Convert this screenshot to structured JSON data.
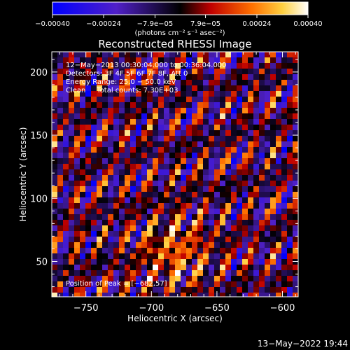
{
  "chart_data": {
    "type": "heatmap",
    "title": "Reconstructed RHESSI Image",
    "xlabel": "Heliocentric X (arcsec)",
    "ylabel": "Heliocentric Y (arcsec)",
    "xlim": [
      -776,
      -588
    ],
    "ylim": [
      22,
      216
    ],
    "x_ticks": [
      -750,
      -700,
      -650,
      -600
    ],
    "x_tick_labels": [
      "−750",
      "−700",
      "−650",
      "−600"
    ],
    "y_ticks": [
      50,
      100,
      150,
      200
    ],
    "y_tick_labels": [
      "50",
      "100",
      "150",
      "200"
    ],
    "annotations": [
      "12−May−2013 00:30:04.000 to 00:36:04.000",
      "Detectors: 3F 4F 5F 6F 7F 8F, Att 0",
      "Energy Range: 25.0 − 50.0 keV",
      "Clean     Total counts: 7.30E+03"
    ],
    "peak": {
      "label": "Position of Peak = [−682,57]",
      "x": -682,
      "y": 57
    },
    "colorbar": {
      "range": [
        -0.0004,
        0.0004
      ],
      "tick_values": [
        -0.0004,
        -0.00024,
        -7.9e-05,
        7.9e-05,
        0.00024,
        0.0004
      ],
      "tick_labels": [
        "−0.00040",
        "−0.00024",
        "−7.9e−05",
        "7.9e−05",
        "0.00024",
        "0.00040"
      ],
      "unit_label": "(photons cm⁻² s⁻¹ asec⁻²)"
    },
    "colors": {
      "background": "#000000",
      "foreground": "#ffffff"
    }
  },
  "footer": {
    "timestamp": "13−May−2022 19:44"
  }
}
